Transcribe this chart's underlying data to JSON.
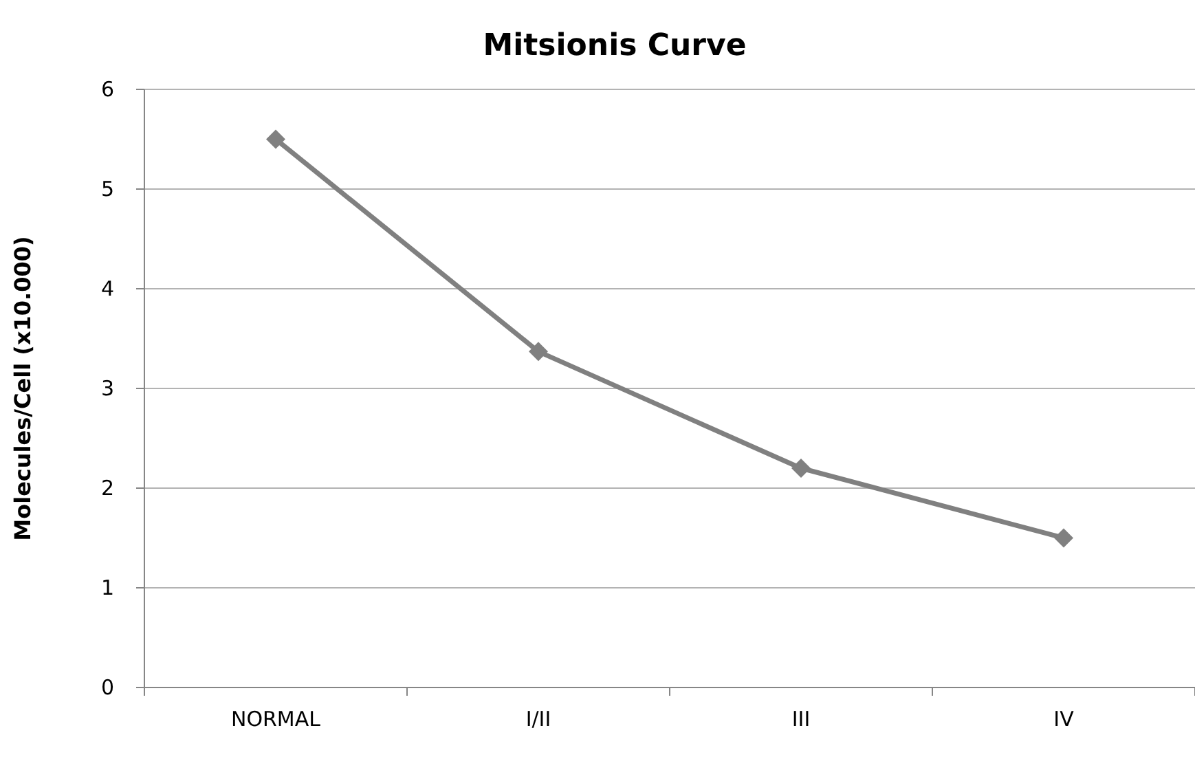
{
  "chart_data": {
    "type": "line",
    "title": "Mitsionis Curve",
    "ylabel": "Molecules/Cell (x10.000)",
    "categories": [
      "NORMAL",
      "I/II",
      "III",
      "IV"
    ],
    "series": [
      {
        "color": "#808080",
        "values": [
          5.5,
          3.37,
          2.2,
          1.5
        ]
      }
    ],
    "ylim": [
      0,
      6
    ],
    "yticks": [
      0,
      1,
      2,
      3,
      4,
      5,
      6
    ],
    "grid": "y",
    "marker": "diamond",
    "line_style": "solid"
  }
}
